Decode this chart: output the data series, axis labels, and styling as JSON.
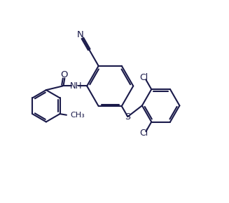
{
  "background_color": "#ffffff",
  "line_color": "#1a1a4a",
  "label_color": "#1a1a4a",
  "line_width": 1.5,
  "figsize": [
    3.27,
    2.89
  ],
  "dpi": 100,
  "xlim": [
    0,
    10
  ],
  "ylim": [
    0,
    9
  ]
}
